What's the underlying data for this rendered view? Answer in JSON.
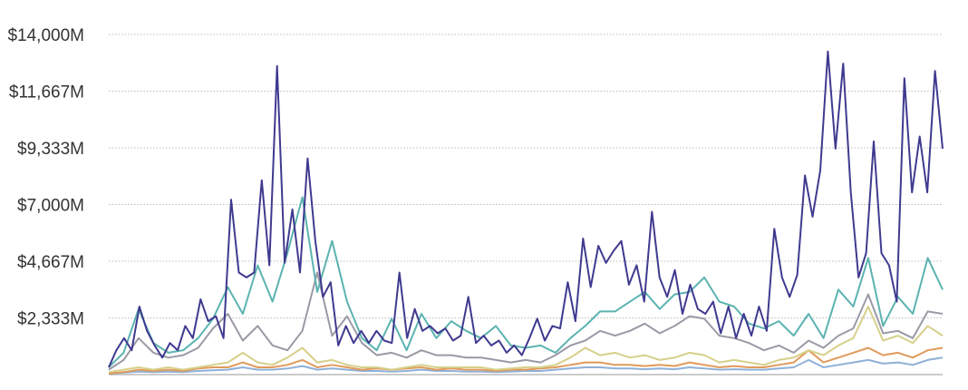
{
  "chart_data": {
    "type": "line",
    "title": "",
    "xlabel": "",
    "ylabel": "",
    "ylim": [
      0,
      14000
    ],
    "y_ticks": [
      {
        "value": 2333,
        "label": "$2,333M"
      },
      {
        "value": 4667,
        "label": "$4,667M"
      },
      {
        "value": 7000,
        "label": "$7,000M"
      },
      {
        "value": 9333,
        "label": "$9,333M"
      },
      {
        "value": 11667,
        "label": "$11,667M"
      },
      {
        "value": 14000,
        "label": "$14,000M"
      }
    ],
    "grid": true,
    "legend": "none",
    "series": [
      {
        "name": "series-blue",
        "color": "#8fb0d8",
        "values": [
          50,
          80,
          120,
          100,
          120,
          100,
          150,
          180,
          200,
          300,
          200,
          200,
          250,
          350,
          200,
          250,
          200,
          150,
          150,
          120,
          150,
          200,
          150,
          150,
          120,
          120,
          100,
          120,
          150,
          150,
          200,
          250,
          300,
          300,
          250,
          250,
          220,
          250,
          220,
          300,
          250,
          200,
          220,
          200,
          200,
          250,
          300,
          600,
          300,
          400,
          500,
          600,
          450,
          500,
          400,
          600,
          700
        ]
      },
      {
        "name": "series-orange",
        "color": "#e09a5a",
        "values": [
          50,
          100,
          200,
          150,
          200,
          150,
          250,
          300,
          300,
          500,
          300,
          300,
          400,
          600,
          300,
          400,
          300,
          200,
          250,
          200,
          250,
          300,
          200,
          250,
          200,
          200,
          150,
          200,
          200,
          250,
          300,
          400,
          500,
          500,
          400,
          400,
          350,
          400,
          350,
          500,
          400,
          300,
          350,
          300,
          300,
          400,
          500,
          1000,
          500,
          700,
          900,
          1100,
          800,
          900,
          700,
          1000,
          1100
        ]
      },
      {
        "name": "series-yellow",
        "color": "#d6d08a",
        "values": [
          100,
          200,
          300,
          200,
          300,
          200,
          300,
          400,
          500,
          900,
          500,
          400,
          700,
          1100,
          500,
          600,
          400,
          300,
          300,
          200,
          300,
          400,
          300,
          300,
          300,
          300,
          200,
          250,
          300,
          300,
          400,
          700,
          1100,
          800,
          900,
          700,
          800,
          600,
          700,
          900,
          800,
          500,
          600,
          500,
          400,
          600,
          700,
          1000,
          800,
          1200,
          1500,
          2800,
          1400,
          1600,
          1300,
          2000,
          1600
        ]
      },
      {
        "name": "series-gray",
        "color": "#9a9aa6",
        "values": [
          200,
          600,
          1500,
          900,
          700,
          800,
          1100,
          1900,
          2500,
          1400,
          2000,
          1200,
          1000,
          1800,
          4200,
          1600,
          2400,
          1300,
          800,
          900,
          700,
          1000,
          800,
          800,
          700,
          700,
          600,
          500,
          600,
          500,
          800,
          1200,
          1400,
          1800,
          1600,
          1800,
          2100,
          1700,
          2000,
          2400,
          2300,
          1600,
          1500,
          1300,
          1000,
          1200,
          900,
          1400,
          1100,
          1600,
          1900,
          3300,
          1700,
          1800,
          1500,
          2600,
          2500
        ]
      },
      {
        "name": "series-teal",
        "color": "#5bb3b0",
        "values": [
          300,
          900,
          2700,
          1300,
          900,
          1000,
          1500,
          2300,
          3600,
          2500,
          4500,
          3000,
          5000,
          7300,
          3400,
          5500,
          3000,
          1500,
          1000,
          2300,
          1000,
          2500,
          1500,
          2200,
          1800,
          1500,
          2000,
          1200,
          1100,
          1200,
          900,
          1500,
          2000,
          2600,
          2600,
          3000,
          3400,
          2700,
          3300,
          3400,
          4000,
          3000,
          2800,
          2100,
          1900,
          2200,
          1600,
          2500,
          1500,
          3500,
          2800,
          4800,
          2000,
          3200,
          2500,
          4800,
          3500
        ]
      },
      {
        "name": "series-purple",
        "color": "#3f3a8f",
        "values": [
          300,
          1000,
          1500,
          1000,
          2800,
          1800,
          1200,
          700,
          1300,
          1000,
          2000,
          1500,
          3100,
          2200,
          2400,
          1500,
          7200,
          4200,
          4000,
          4200,
          8000,
          4500,
          12700,
          4600,
          6800,
          4200,
          8900,
          5500,
          3200,
          3800,
          1200,
          2000,
          1300,
          1800,
          1300,
          1800,
          1400,
          1300,
          4200,
          1500,
          2700,
          1800,
          2000,
          1700,
          1900,
          1400,
          1600,
          3200,
          1300,
          1600,
          1200,
          1400,
          900,
          1200,
          800,
          1500,
          2300,
          1400,
          2000,
          1900,
          3800,
          2200,
          5600,
          3600,
          5300,
          4600,
          5100,
          5500,
          3700,
          4500,
          3000,
          6700,
          4000,
          3200,
          4300,
          2500,
          3700,
          2700,
          2500,
          3000,
          1700,
          2800,
          1500,
          2500,
          1600,
          2800,
          1800,
          6000,
          4000,
          3200,
          4100,
          8200,
          6500,
          8400,
          13300,
          9300,
          12800,
          7500,
          4000,
          5000,
          9600,
          5000,
          4500,
          3000,
          12200,
          7500,
          9800,
          7500,
          12500,
          9300
        ]
      }
    ]
  }
}
